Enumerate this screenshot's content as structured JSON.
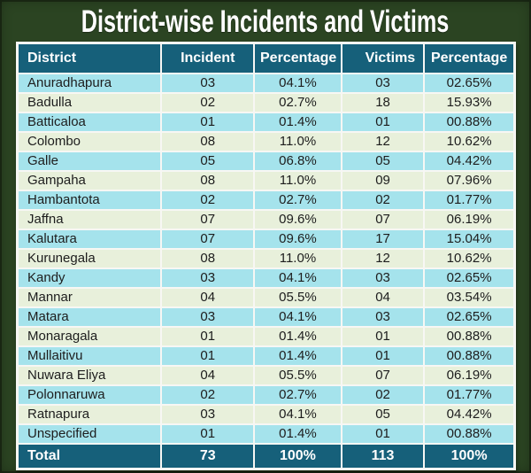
{
  "colors": {
    "background": "#2b4422",
    "header_band": "#16607a",
    "row_cyan": "#a5e3ec",
    "row_cream": "#e8f0db",
    "grid_lines": "#f7f7f4",
    "body_text": "#1d1d1d",
    "title_text": "#ffffff"
  },
  "chart_data": {
    "type": "table",
    "title": "District-wise Incidents and Victims",
    "columns": [
      "District",
      "Incident",
      "Percentage",
      "Victims",
      "Percentage"
    ],
    "rows": [
      [
        "Anuradhapura",
        "03",
        "04.1%",
        "03",
        "02.65%"
      ],
      [
        "Badulla",
        "02",
        "02.7%",
        "18",
        "15.93%"
      ],
      [
        "Batticaloa",
        "01",
        "01.4%",
        "01",
        "00.88%"
      ],
      [
        "Colombo",
        "08",
        "11.0%",
        "12",
        "10.62%"
      ],
      [
        "Galle",
        "05",
        "06.8%",
        "05",
        "04.42%"
      ],
      [
        "Gampaha",
        "08",
        "11.0%",
        "09",
        "07.96%"
      ],
      [
        "Hambantota",
        "02",
        "02.7%",
        "02",
        "01.77%"
      ],
      [
        "Jaffna",
        "07",
        "09.6%",
        "07",
        "06.19%"
      ],
      [
        "Kalutara",
        "07",
        "09.6%",
        "17",
        "15.04%"
      ],
      [
        "Kurunegala",
        "08",
        "11.0%",
        "12",
        "10.62%"
      ],
      [
        "Kandy",
        "03",
        "04.1%",
        "03",
        "02.65%"
      ],
      [
        "Mannar",
        "04",
        "05.5%",
        "04",
        "03.54%"
      ],
      [
        "Matara",
        "03",
        "04.1%",
        "03",
        "02.65%"
      ],
      [
        "Monaragala",
        "01",
        "01.4%",
        "01",
        "00.88%"
      ],
      [
        "Mullaitivu",
        "01",
        "01.4%",
        "01",
        "00.88%"
      ],
      [
        "Nuwara Eliya",
        "04",
        "05.5%",
        "07",
        "06.19%"
      ],
      [
        "Polonnaruwa",
        "02",
        "02.7%",
        "02",
        "01.77%"
      ],
      [
        "Ratnapura",
        "03",
        "04.1%",
        "05",
        "04.42%"
      ],
      [
        "Unspecified",
        "01",
        "01.4%",
        "01",
        "00.88%"
      ]
    ],
    "total_row": [
      "Total",
      "73",
      "100%",
      "113",
      "100%"
    ]
  }
}
